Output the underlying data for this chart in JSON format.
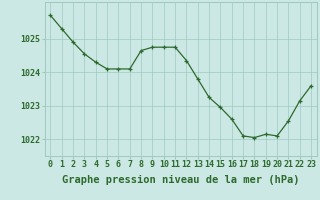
{
  "x": [
    0,
    1,
    2,
    3,
    4,
    5,
    6,
    7,
    8,
    9,
    10,
    11,
    12,
    13,
    14,
    15,
    16,
    17,
    18,
    19,
    20,
    21,
    22,
    23
  ],
  "y": [
    1025.7,
    1025.3,
    1024.9,
    1024.55,
    1024.3,
    1024.1,
    1024.1,
    1024.1,
    1024.65,
    1024.75,
    1024.75,
    1024.75,
    1024.35,
    1023.8,
    1023.25,
    1022.95,
    1022.6,
    1022.1,
    1022.05,
    1022.15,
    1022.1,
    1022.55,
    1023.15,
    1023.6
  ],
  "line_color": "#2d6a2d",
  "marker_color": "#2d6a2d",
  "bg_color": "#cce8e4",
  "grid_color": "#9fc9c2",
  "ylabel_ticks": [
    1022,
    1023,
    1024,
    1025
  ],
  "xlabel_label": "Graphe pression niveau de la mer (hPa)",
  "ylim": [
    1021.5,
    1026.1
  ],
  "xlim": [
    -0.5,
    23.5
  ],
  "label_color": "#2d6a2d",
  "label_fontsize": 7.5,
  "tick_fontsize": 6.0
}
